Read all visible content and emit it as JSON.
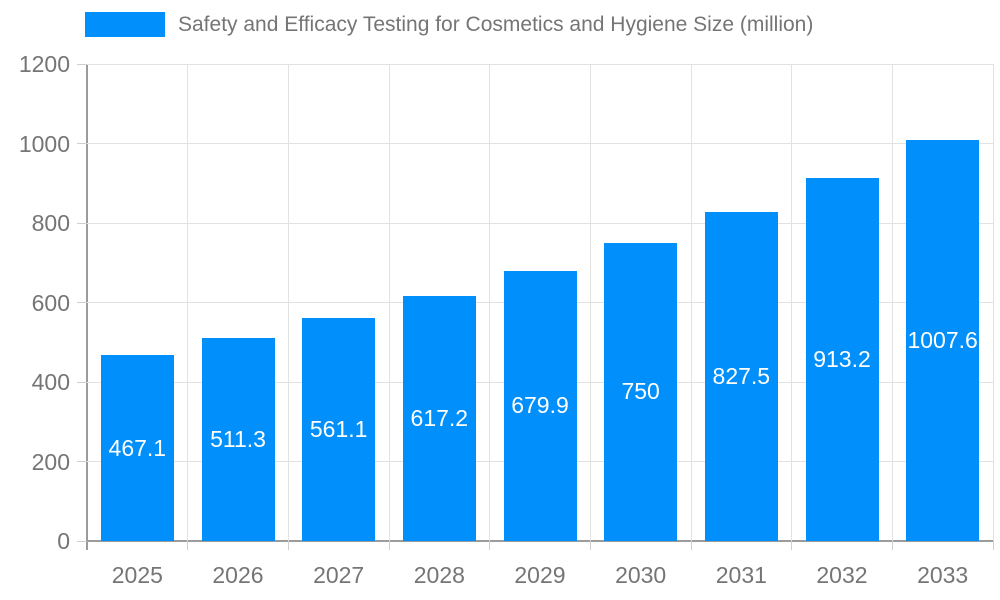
{
  "chart_data": {
    "type": "bar",
    "title": "Safety and Efficacy Testing for Cosmetics and Hygiene Size (million)",
    "categories": [
      "2025",
      "2026",
      "2027",
      "2028",
      "2029",
      "2030",
      "2031",
      "2032",
      "2033"
    ],
    "values": [
      467.1,
      511.3,
      561.1,
      617.2,
      679.9,
      750,
      827.5,
      913.2,
      1007.6
    ],
    "bar_labels": [
      "467.1",
      "511.3",
      "561.1",
      "617.2",
      "679.9",
      "750",
      "827.5",
      "913.2",
      "1007.6"
    ],
    "xlabel": "",
    "ylabel": "",
    "ylim": [
      0,
      1200
    ],
    "y_ticks": [
      0,
      200,
      400,
      600,
      800,
      1000,
      1200
    ],
    "grid": true,
    "legend_position": "top-left",
    "bar_label_position": "center-inside"
  },
  "colors": {
    "bar": "#008FFB",
    "grid": "#e2e2e2",
    "tick": "#cfcfcf",
    "axis": "#9b9b9b",
    "text": "#757575",
    "bar_label": "#ffffff",
    "background": "#ffffff"
  }
}
